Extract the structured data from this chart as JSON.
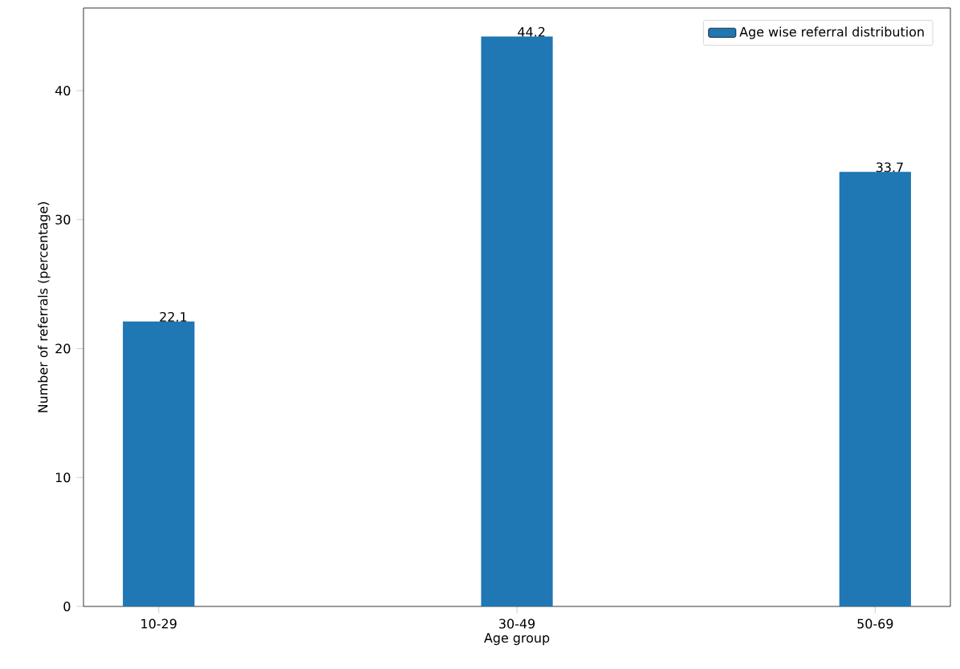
{
  "chart_data": {
    "type": "bar",
    "xlabel": "Age group",
    "ylabel": "Number of referrals (percentage)",
    "categories": [
      "10-29",
      "30-49",
      "50-69"
    ],
    "series": [
      {
        "name": "Age wise referral distribution",
        "color": "#1f77b4",
        "values": [
          22.1,
          44.2,
          33.7
        ]
      }
    ],
    "ylim": [
      0,
      46.41
    ],
    "yticks": [
      0,
      10,
      20,
      30,
      40
    ],
    "data_labels": true,
    "legend": "top right"
  }
}
